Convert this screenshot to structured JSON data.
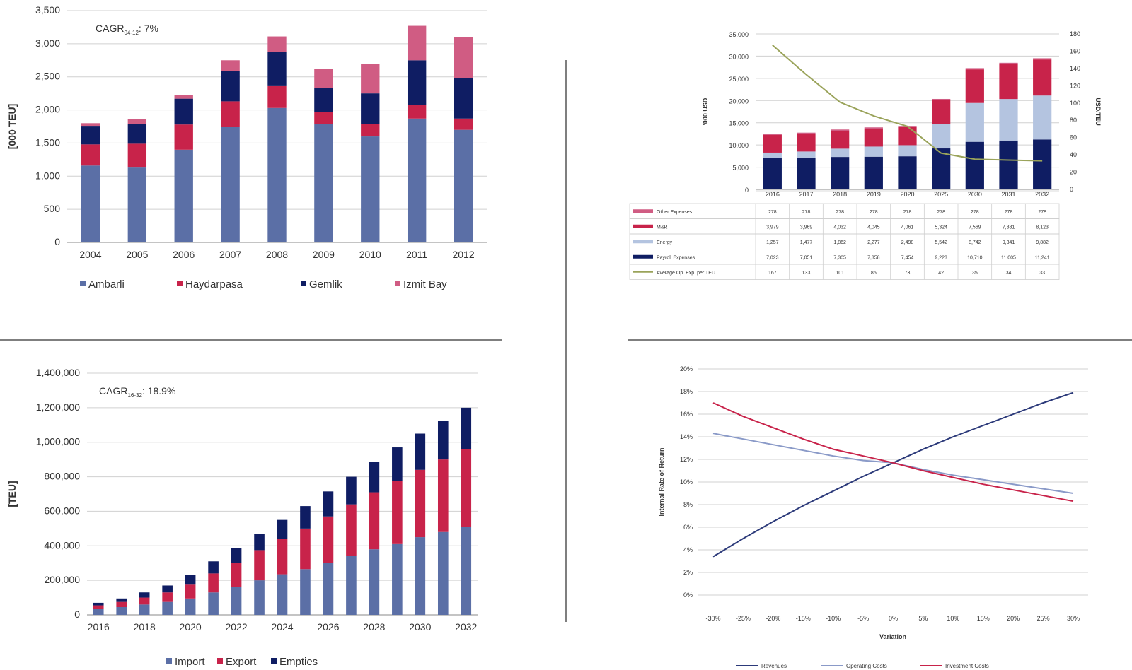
{
  "chart_data": [
    {
      "id": "throughput_by_port",
      "type": "bar",
      "stacked": true,
      "categories": [
        "2004",
        "2005",
        "2006",
        "2007",
        "2008",
        "2009",
        "2010",
        "2011",
        "2012"
      ],
      "ylabel": "[000 TEU]",
      "ylim": [
        0,
        3500
      ],
      "yticks": [
        "0",
        "500",
        "1,000",
        "1,500",
        "2,000",
        "2,500",
        "3,000",
        "3,500"
      ],
      "annotation": {
        "prefix": "CAGR",
        "sub": "04-12",
        "suffix": ": 7%"
      },
      "grid": true,
      "legend_position": "bottom",
      "series": [
        {
          "name": "Ambarli",
          "color": "#5b6fa6",
          "values": [
            1160,
            1130,
            1400,
            1750,
            2030,
            1790,
            1600,
            1870,
            1700
          ]
        },
        {
          "name": "Haydarpasa",
          "color": "#c8234a",
          "values": [
            320,
            360,
            380,
            380,
            340,
            180,
            190,
            200,
            170
          ]
        },
        {
          "name": "Gemlik",
          "color": "#0f1d63",
          "values": [
            280,
            300,
            390,
            460,
            510,
            360,
            460,
            680,
            610
          ]
        },
        {
          "name": "Izmit Bay",
          "color": "#d05c83",
          "values": [
            40,
            70,
            60,
            160,
            230,
            290,
            440,
            520,
            620
          ]
        }
      ]
    },
    {
      "id": "opex_projection",
      "type": "bar",
      "stacked": true,
      "categories": [
        "2016",
        "2017",
        "2018",
        "2019",
        "2020",
        "2025",
        "2030",
        "2031",
        "2032"
      ],
      "ylabel": "'000 USD",
      "y2label": "USD/TEU",
      "ylim": [
        0,
        35000
      ],
      "y2lim": [
        0,
        180
      ],
      "yticks": [
        "0",
        "5,000",
        "10,000",
        "15,000",
        "20,000",
        "25,000",
        "30,000",
        "35,000"
      ],
      "y2ticks": [
        "0",
        "20",
        "40",
        "60",
        "80",
        "100",
        "120",
        "140",
        "160",
        "180"
      ],
      "grid": true,
      "legend_position": "table",
      "series": [
        {
          "name": "Payroll Expenses",
          "color": "#0f1d63",
          "values": [
            7023,
            7051,
            7305,
            7358,
            7454,
            9223,
            10710,
            11005,
            11241
          ]
        },
        {
          "name": "Energy",
          "color": "#b4c4e0",
          "values": [
            1257,
            1477,
            1862,
            2277,
            2498,
            5542,
            8742,
            9341,
            9882
          ]
        },
        {
          "name": "M&R",
          "color": "#c8234a",
          "values": [
            3979,
            3969,
            4032,
            4045,
            4061,
            5324,
            7569,
            7881,
            8123
          ]
        },
        {
          "name": "Other Expenses",
          "color": "#d05c83",
          "values": [
            278,
            278,
            278,
            278,
            278,
            278,
            278,
            278,
            278
          ]
        }
      ],
      "line": {
        "name": "Average Op. Exp. per TEU",
        "color": "#9aa35a",
        "values": [
          167,
          133,
          101,
          85,
          73,
          42,
          35,
          34,
          33
        ]
      },
      "table_rows": [
        {
          "label": "Other Expenses",
          "cells": [
            "278",
            "278",
            "278",
            "278",
            "278",
            "278",
            "278",
            "278",
            "278"
          ]
        },
        {
          "label": "M&R",
          "cells": [
            "3,979",
            "3,969",
            "4,032",
            "4,045",
            "4,061",
            "5,324",
            "7,569",
            "7,881",
            "8,123"
          ]
        },
        {
          "label": "Energy",
          "cells": [
            "1,257",
            "1,477",
            "1,862",
            "2,277",
            "2,498",
            "5,542",
            "8,742",
            "9,341",
            "9,882"
          ]
        },
        {
          "label": "Payroll Expenses",
          "cells": [
            "7,023",
            "7,051",
            "7,305",
            "7,358",
            "7,454",
            "9,223",
            "10,710",
            "11,005",
            "11,241"
          ]
        },
        {
          "label": "Average Op. Exp. per TEU",
          "cells": [
            "167",
            "133",
            "101",
            "85",
            "73",
            "42",
            "35",
            "34",
            "33"
          ]
        }
      ]
    },
    {
      "id": "teu_projection",
      "type": "bar",
      "stacked": true,
      "categories": [
        "2016",
        "2017",
        "2018",
        "2019",
        "2020",
        "2021",
        "2022",
        "2023",
        "2024",
        "2025",
        "2026",
        "2027",
        "2028",
        "2029",
        "2030",
        "2031",
        "2032"
      ],
      "xticks": [
        "2016",
        "2018",
        "2020",
        "2022",
        "2024",
        "2026",
        "2028",
        "2030",
        "2032"
      ],
      "ylabel": "[TEU]",
      "ylim": [
        0,
        1400000
      ],
      "yticks": [
        "0",
        "200,000",
        "400,000",
        "600,000",
        "800,000",
        "1,000,000",
        "1,200,000",
        "1,400,000"
      ],
      "annotation": {
        "prefix": "CAGR",
        "sub": "16-32",
        "suffix": ": 18.9%"
      },
      "grid": true,
      "legend_position": "bottom",
      "series": [
        {
          "name": "Import",
          "color": "#5b6fa6",
          "values": [
            35000,
            45000,
            60000,
            75000,
            95000,
            130000,
            160000,
            200000,
            235000,
            265000,
            300000,
            340000,
            380000,
            410000,
            450000,
            480000,
            510000
          ]
        },
        {
          "name": "Export",
          "color": "#c8234a",
          "values": [
            20000,
            30000,
            40000,
            55000,
            80000,
            110000,
            140000,
            175000,
            205000,
            235000,
            270000,
            300000,
            330000,
            365000,
            390000,
            420000,
            450000
          ]
        },
        {
          "name": "Empties",
          "color": "#0f1d63",
          "values": [
            15000,
            20000,
            30000,
            40000,
            55000,
            70000,
            85000,
            95000,
            110000,
            130000,
            145000,
            160000,
            175000,
            195000,
            210000,
            225000,
            240000
          ]
        }
      ]
    },
    {
      "id": "irr_sensitivity",
      "type": "line",
      "x": [
        "-30%",
        "-25%",
        "-20%",
        "-15%",
        "-10%",
        "-5%",
        "0%",
        "5%",
        "10%",
        "15%",
        "20%",
        "25%",
        "30%"
      ],
      "xlabel": "Variation",
      "ylabel": "Internal Rate of Return",
      "ylim": [
        0,
        20
      ],
      "yticks": [
        "0%",
        "2%",
        "4%",
        "6%",
        "8%",
        "10%",
        "12%",
        "14%",
        "16%",
        "18%",
        "20%"
      ],
      "grid": true,
      "legend_position": "bottom",
      "series": [
        {
          "name": "Revenues",
          "color": "#2c3a7a",
          "values": [
            3.4,
            5.0,
            6.5,
            7.9,
            9.2,
            10.5,
            11.7,
            12.9,
            14.0,
            15.0,
            16.0,
            17.0,
            17.9
          ]
        },
        {
          "name": "Operating Costs",
          "color": "#8a9ac8",
          "values": [
            14.3,
            13.8,
            13.3,
            12.8,
            12.3,
            11.9,
            11.7,
            11.1,
            10.6,
            10.2,
            9.8,
            9.4,
            9.0
          ]
        },
        {
          "name": "Investment Costs",
          "color": "#c8234a",
          "values": [
            17.0,
            15.8,
            14.8,
            13.8,
            12.9,
            12.3,
            11.7,
            11.0,
            10.4,
            9.8,
            9.3,
            8.8,
            8.3
          ]
        }
      ]
    }
  ]
}
